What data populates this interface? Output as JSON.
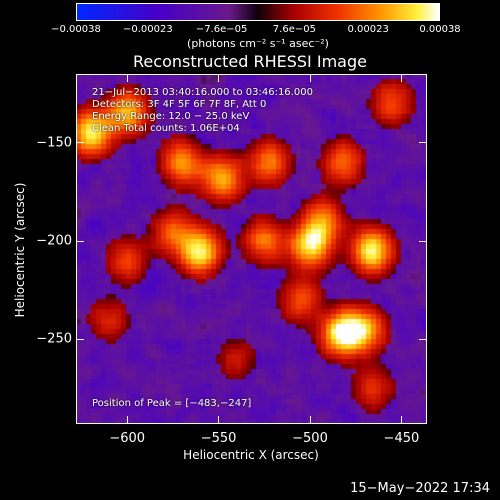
{
  "chart_data": {
    "type": "heatmap",
    "title": "Reconstructed RHESSI Image",
    "xlabel": "Heliocentric X (arcsec)",
    "ylabel": "Heliocentric Y (arcsec)",
    "xlim": [
      -628,
      -436
    ],
    "ylim": [
      -293,
      -115
    ],
    "xticks": [
      "−600",
      "−550",
      "−500",
      "−450"
    ],
    "xtick_values": [
      -600,
      -550,
      -500,
      -450
    ],
    "yticks": [
      "−150",
      "−200",
      "−250"
    ],
    "ytick_values": [
      -150,
      -200,
      -250
    ],
    "colormap": "red-temperature with blue-purple for negatives",
    "colorbar": {
      "ticks": [
        "−0.00038",
        "−0.00023",
        "−7.6e−05",
        "7.6e−05",
        "0.00023",
        "0.00038"
      ],
      "tick_values": [
        -0.00038,
        -0.00023,
        -7.6e-05,
        7.6e-05,
        0.00023,
        0.00038
      ],
      "units": "(photons cm⁻² s⁻¹ asec⁻²)"
    },
    "annotations": [
      "21−Jul−2013 03:40:16.000 to 03:46:16.000",
      "Detectors: 3F 4F 5F 6F 7F 8F, Att 0",
      "Energy Range: 12.0 − 25.0 keV",
      "Clean     Total counts: 1.06E+04"
    ],
    "peak_label": "Position of Peak = [−483,−247]",
    "bright_regions": [
      {
        "x": -620,
        "y": -145,
        "level": 0.95
      },
      {
        "x": -600,
        "y": -135,
        "level": 0.8
      },
      {
        "x": -570,
        "y": -160,
        "level": 0.7
      },
      {
        "x": -548,
        "y": -168,
        "level": 0.75
      },
      {
        "x": -522,
        "y": -160,
        "level": 0.6
      },
      {
        "x": -493,
        "y": -190,
        "level": 0.65
      },
      {
        "x": -482,
        "y": -160,
        "level": 0.55
      },
      {
        "x": -560,
        "y": -205,
        "level": 0.95
      },
      {
        "x": -575,
        "y": -195,
        "level": 0.5
      },
      {
        "x": -525,
        "y": -200,
        "level": 0.6
      },
      {
        "x": -500,
        "y": -203,
        "level": 0.85
      },
      {
        "x": -466,
        "y": -205,
        "level": 0.95
      },
      {
        "x": -483,
        "y": -247,
        "level": 1.0
      },
      {
        "x": -470,
        "y": -245,
        "level": 0.7
      },
      {
        "x": -505,
        "y": -230,
        "level": 0.5
      },
      {
        "x": -600,
        "y": -210,
        "level": 0.45
      },
      {
        "x": -610,
        "y": -240,
        "level": 0.35
      },
      {
        "x": -540,
        "y": -260,
        "level": 0.3
      },
      {
        "x": -465,
        "y": -275,
        "level": 0.4
      },
      {
        "x": -455,
        "y": -130,
        "level": 0.5
      }
    ]
  },
  "footer": {
    "timestamp": "15−May−2022 17:34"
  }
}
